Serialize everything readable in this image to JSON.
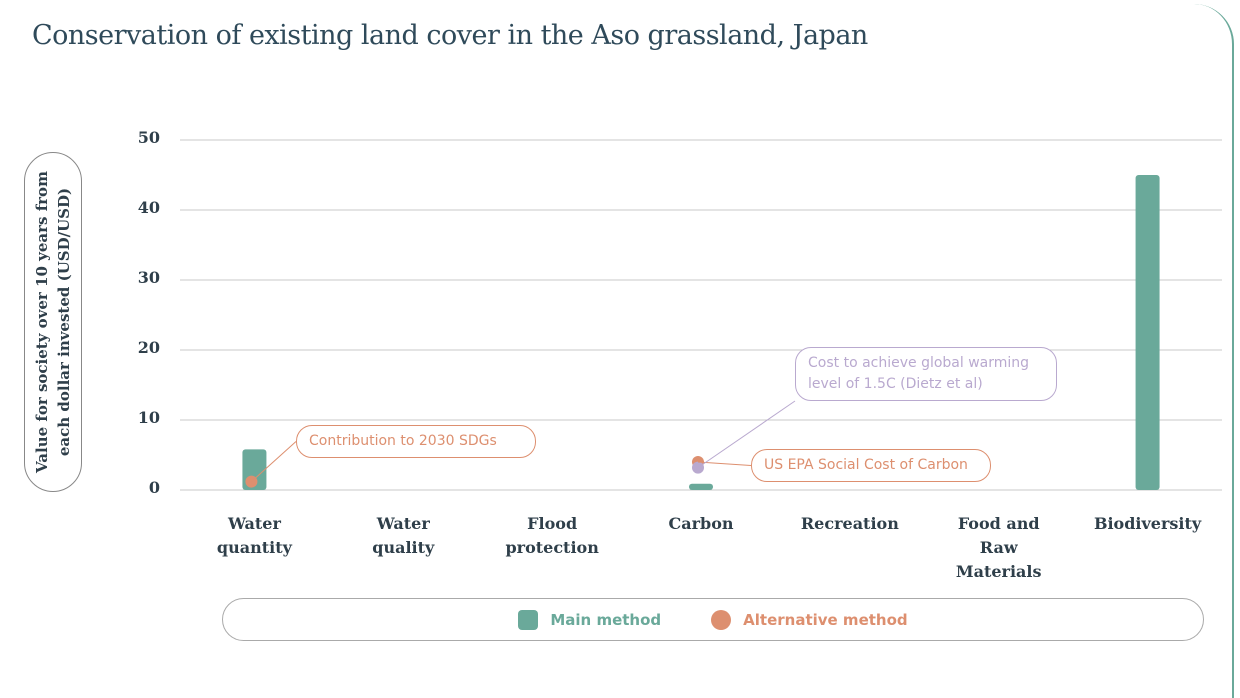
{
  "chart_data": {
    "type": "bar",
    "title": "Conservation of existing land cover in the Aso grassland, Japan",
    "y_label": "Value for society over 10 years from each dollar invested (USD/USD)",
    "categories": [
      "Water quantity",
      "Water quality",
      "Flood protection",
      "Carbon",
      "Recreation",
      "Food and Raw Materials",
      "Biodiversity"
    ],
    "series": [
      {
        "name": "Main method",
        "color": "#6aa99a",
        "values": [
          5.8,
          null,
          null,
          0.9,
          null,
          null,
          45
        ]
      },
      {
        "name": "Alternative method",
        "color": "#dd8f6f",
        "values": [
          1.2,
          null,
          null,
          4.0,
          null,
          null,
          null
        ]
      }
    ],
    "annotations": [
      {
        "text": "Contribution to 2030 SDGs",
        "color": "#dd8f6f"
      },
      {
        "text": "US EPA Social Cost of Carbon",
        "color": "#dd8f6f"
      },
      {
        "text": "Cost to achieve global warming level of 1.5C (Dietz et al)",
        "value": 3.2,
        "color": "#b9a9cf"
      }
    ],
    "ylim": [
      0,
      50
    ],
    "yticks": [
      0,
      10,
      20,
      30,
      40,
      50
    ],
    "grid": true,
    "legend": "bottom"
  }
}
